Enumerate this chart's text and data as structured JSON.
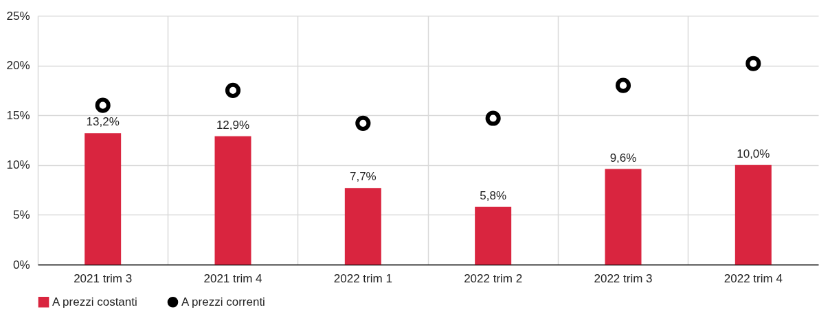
{
  "chart_data": {
    "type": "bar",
    "categories": [
      "2021 trim 3",
      "2021 trim 4",
      "2022 trim 1",
      "2022 trim 2",
      "2022 trim 3",
      "2022 trim 4"
    ],
    "series": [
      {
        "name": "A prezzi costanti",
        "color": "#d9253f",
        "values": [
          13.2,
          12.9,
          7.7,
          5.8,
          9.6,
          10.0
        ],
        "value_labels": [
          "13,2%",
          "12,9%",
          "7,7%",
          "5,8%",
          "9,6%",
          "10,0%"
        ]
      },
      {
        "name": "A prezzi correnti",
        "type": "scatter",
        "color": "#000000",
        "values": [
          16.0,
          17.5,
          14.2,
          14.7,
          18.0,
          20.2
        ]
      }
    ],
    "ylim": [
      0,
      25
    ],
    "yticks": [
      {
        "value": 0,
        "label": "0%"
      },
      {
        "value": 5,
        "label": "5%"
      },
      {
        "value": 10,
        "label": "10%"
      },
      {
        "value": 15,
        "label": "15%"
      },
      {
        "value": 20,
        "label": "20%"
      },
      {
        "value": 25,
        "label": "25%"
      }
    ],
    "grid": true,
    "legend": "bottom",
    "marker": "circle"
  }
}
